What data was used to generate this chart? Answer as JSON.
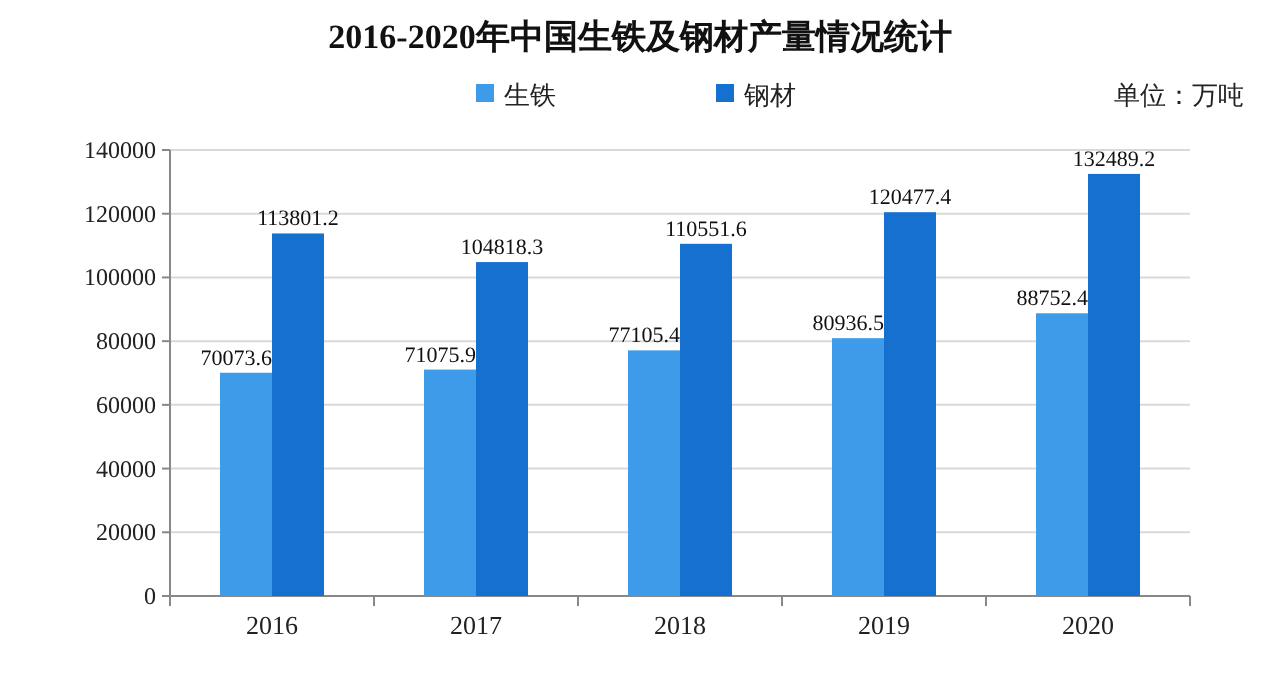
{
  "chart_data": {
    "type": "bar",
    "title": "2016-2020年中国生铁及钢材产量情况统计",
    "categories": [
      "2016",
      "2017",
      "2018",
      "2019",
      "2020"
    ],
    "series": [
      {
        "name": "生铁",
        "color": "#3d9be9",
        "values": [
          70073.6,
          71075.9,
          77105.4,
          80936.5,
          88752.4
        ]
      },
      {
        "name": "钢材",
        "color": "#1670cf",
        "values": [
          113801.2,
          104818.3,
          110551.6,
          120477.4,
          132489.2
        ]
      }
    ],
    "ylim": [
      0,
      140000
    ],
    "yticks": [
      0,
      20000,
      40000,
      60000,
      80000,
      100000,
      120000,
      140000
    ],
    "grid": "y",
    "legend": "top",
    "data_labels": true,
    "annotations": [
      "单位：万吨"
    ]
  }
}
